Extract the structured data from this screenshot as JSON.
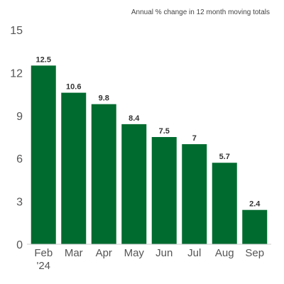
{
  "chart_data": {
    "type": "bar",
    "subtitle": "Annual % change in 12 month moving totals",
    "categories": [
      "Feb",
      "Mar",
      "Apr",
      "May",
      "Jun",
      "Jul",
      "Aug",
      "Sep"
    ],
    "category_sublabels": [
      "'24",
      "",
      "",
      "",
      "",
      "",
      "",
      ""
    ],
    "values": [
      12.5,
      10.6,
      9.8,
      8.4,
      7.5,
      7,
      5.7,
      2.4
    ],
    "data_labels": [
      "12.5",
      "10.6",
      "9.8",
      "8.4",
      "7.5",
      "7",
      "5.7",
      "2.4"
    ],
    "yticks": [
      "0",
      "3",
      "6",
      "9",
      "12",
      "15"
    ],
    "ylim": [
      0,
      15
    ],
    "xlabel": "",
    "ylabel": "",
    "grid": false,
    "bar_color": "#006b2f"
  }
}
